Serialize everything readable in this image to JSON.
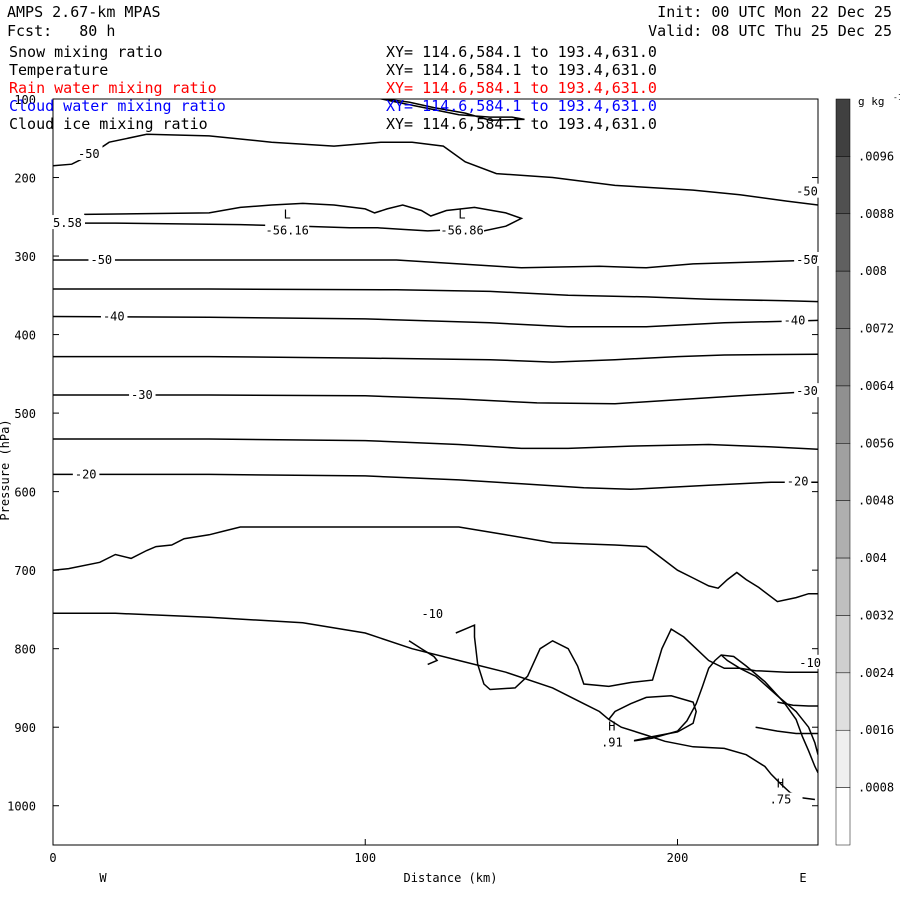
{
  "header": {
    "model": "AMPS 2.67-km MPAS",
    "init": "Init: 00 UTC Mon 22 Dec 25",
    "fcst": "Fcst:   80 h",
    "valid": "Valid: 08 UTC Thu 25 Dec 25"
  },
  "fields": [
    {
      "name": "Snow mixing ratio",
      "xy": "XY= 114.6,584.1 to 193.4,631.0",
      "color": "#000000"
    },
    {
      "name": "Temperature",
      "xy": "XY= 114.6,584.1 to 193.4,631.0",
      "color": "#000000"
    },
    {
      "name": "Rain water mixing ratio",
      "xy": "XY= 114.6,584.1 to 193.4,631.0",
      "color": "#ff0000"
    },
    {
      "name": "Cloud water mixing ratio",
      "xy": "XY= 114.6,584.1 to 193.4,631.0",
      "color": "#0000ff"
    },
    {
      "name": "Cloud ice mixing ratio",
      "xy": "XY= 114.6,584.1 to 193.4,631.0",
      "color": "#000000"
    }
  ],
  "chart_data": {
    "type": "line",
    "xlabel": "Distance (km)",
    "ylabel": "Pressure (hPa)",
    "xlim": [
      0,
      245
    ],
    "ylim": [
      1050,
      100
    ],
    "xticks": [
      0,
      100,
      200
    ],
    "yticks": [
      100,
      200,
      300,
      400,
      500,
      600,
      700,
      800,
      900,
      1000
    ],
    "side_labels": {
      "west": "W",
      "east": "E"
    },
    "colorbar": {
      "units": "g kg",
      "units_exp": "-1",
      "labels": [
        ".0096",
        ".0088",
        ".008",
        ".0072",
        ".0064",
        ".0056",
        ".0048",
        ".004",
        ".0032",
        ".0024",
        ".0016",
        ".0008"
      ]
    },
    "contour_labels": [
      {
        "text": "-50",
        "x": 8,
        "y": 170
      },
      {
        "text": "-50",
        "x": 238,
        "y": 218
      },
      {
        "text": "-50",
        "x": 12,
        "y": 305
      },
      {
        "text": "-50",
        "x": 238,
        "y": 305
      },
      {
        "text": "-40",
        "x": 16,
        "y": 377
      },
      {
        "text": "-40",
        "x": 234,
        "y": 382
      },
      {
        "text": "-30",
        "x": 25,
        "y": 477
      },
      {
        "text": "-30",
        "x": 238,
        "y": 472
      },
      {
        "text": "-20",
        "x": 7,
        "y": 578
      },
      {
        "text": "-20",
        "x": 235,
        "y": 587
      },
      {
        "text": "-10",
        "x": 118,
        "y": 756
      },
      {
        "text": "-10",
        "x": 239,
        "y": 818
      },
      {
        "text": "5.58",
        "x": 0,
        "y": 258
      }
    ],
    "extrema": [
      {
        "type": "L",
        "value": "-56.16",
        "x": 75,
        "y": 257
      },
      {
        "type": "L",
        "value": "-56.86",
        "x": 131,
        "y": 257
      },
      {
        "type": "H",
        "value": ".91",
        "x": 179,
        "y": 909
      },
      {
        "type": "H",
        "value": ".75",
        "x": 233,
        "y": 982
      }
    ],
    "isotherms": [
      {
        "name": "top",
        "points": [
          [
            104,
            99
          ],
          [
            110,
            104
          ],
          [
            120,
            112
          ],
          [
            130,
            120
          ],
          [
            140,
            123
          ],
          [
            147,
            123
          ],
          [
            151,
            126
          ],
          [
            140,
            127
          ],
          [
            132,
            118
          ],
          [
            122,
            111
          ],
          [
            114,
            104
          ],
          [
            106,
            100
          ]
        ]
      },
      {
        "name": "-50a",
        "points": [
          [
            0,
            185
          ],
          [
            6,
            183
          ],
          [
            12,
            171
          ],
          [
            18,
            155
          ],
          [
            30,
            145
          ],
          [
            50,
            147
          ],
          [
            70,
            155
          ],
          [
            90,
            160
          ],
          [
            105,
            155
          ],
          [
            115,
            155
          ],
          [
            125,
            160
          ],
          [
            132,
            180
          ],
          [
            142,
            195
          ],
          [
            160,
            200
          ],
          [
            180,
            210
          ],
          [
            205,
            216
          ],
          [
            220,
            222
          ],
          [
            235,
            230
          ],
          [
            245,
            235
          ]
        ]
      },
      {
        "name": "-55",
        "points": [
          [
            10,
            247
          ],
          [
            30,
            246
          ],
          [
            50,
            245
          ],
          [
            60,
            238
          ],
          [
            70,
            235
          ],
          [
            80,
            233
          ],
          [
            90,
            235
          ],
          [
            100,
            240
          ],
          [
            103,
            245
          ],
          [
            107,
            240
          ],
          [
            112,
            235
          ],
          [
            118,
            242
          ],
          [
            121,
            249
          ],
          [
            126,
            242
          ],
          [
            135,
            238
          ],
          [
            145,
            245
          ],
          [
            150,
            252
          ],
          [
            145,
            262
          ],
          [
            138,
            268
          ],
          [
            130,
            266
          ],
          [
            120,
            268
          ],
          [
            112,
            266
          ],
          [
            104,
            264
          ],
          [
            95,
            264
          ],
          [
            80,
            262
          ],
          [
            60,
            260
          ],
          [
            40,
            259
          ],
          [
            20,
            258
          ],
          [
            0,
            258
          ]
        ]
      },
      {
        "name": "-50b",
        "points": [
          [
            0,
            305
          ],
          [
            40,
            305
          ],
          [
            80,
            305
          ],
          [
            110,
            305
          ],
          [
            130,
            310
          ],
          [
            150,
            315
          ],
          [
            175,
            313
          ],
          [
            190,
            315
          ],
          [
            205,
            310
          ],
          [
            230,
            307
          ],
          [
            245,
            305
          ]
        ]
      },
      {
        "name": "-45",
        "points": [
          [
            0,
            342
          ],
          [
            50,
            342
          ],
          [
            110,
            343
          ],
          [
            140,
            345
          ],
          [
            165,
            350
          ],
          [
            190,
            352
          ],
          [
            210,
            355
          ],
          [
            235,
            357
          ],
          [
            245,
            358
          ]
        ]
      },
      {
        "name": "-40",
        "points": [
          [
            0,
            377
          ],
          [
            50,
            378
          ],
          [
            100,
            380
          ],
          [
            140,
            385
          ],
          [
            165,
            390
          ],
          [
            190,
            390
          ],
          [
            215,
            385
          ],
          [
            235,
            383
          ],
          [
            245,
            382
          ]
        ]
      },
      {
        "name": "-35",
        "points": [
          [
            0,
            428
          ],
          [
            50,
            428
          ],
          [
            100,
            430
          ],
          [
            140,
            432
          ],
          [
            160,
            435
          ],
          [
            180,
            432
          ],
          [
            200,
            428
          ],
          [
            215,
            426
          ],
          [
            245,
            425
          ]
        ]
      },
      {
        "name": "-30",
        "points": [
          [
            0,
            477
          ],
          [
            50,
            477
          ],
          [
            100,
            478
          ],
          [
            130,
            482
          ],
          [
            155,
            487
          ],
          [
            180,
            488
          ],
          [
            200,
            483
          ],
          [
            220,
            478
          ],
          [
            245,
            472
          ]
        ]
      },
      {
        "name": "-25",
        "points": [
          [
            0,
            533
          ],
          [
            50,
            533
          ],
          [
            100,
            535
          ],
          [
            130,
            540
          ],
          [
            150,
            545
          ],
          [
            165,
            545
          ],
          [
            185,
            542
          ],
          [
            210,
            540
          ],
          [
            230,
            543
          ],
          [
            245,
            546
          ]
        ]
      },
      {
        "name": "-20",
        "points": [
          [
            0,
            578
          ],
          [
            50,
            578
          ],
          [
            100,
            580
          ],
          [
            130,
            585
          ],
          [
            150,
            590
          ],
          [
            170,
            595
          ],
          [
            185,
            597
          ],
          [
            210,
            592
          ],
          [
            230,
            588
          ],
          [
            245,
            588
          ]
        ]
      },
      {
        "name": "-15",
        "points": [
          [
            0,
            700
          ],
          [
            5,
            698
          ],
          [
            15,
            690
          ],
          [
            20,
            680
          ],
          [
            25,
            685
          ],
          [
            30,
            675
          ],
          [
            33,
            670
          ],
          [
            38,
            668
          ],
          [
            42,
            660
          ],
          [
            50,
            655
          ],
          [
            55,
            650
          ],
          [
            60,
            645
          ],
          [
            80,
            645
          ],
          [
            110,
            645
          ],
          [
            130,
            645
          ],
          [
            145,
            655
          ],
          [
            160,
            665
          ],
          [
            180,
            668
          ],
          [
            190,
            670
          ],
          [
            195,
            685
          ],
          [
            200,
            700
          ],
          [
            205,
            710
          ],
          [
            210,
            720
          ],
          [
            213,
            723
          ],
          [
            216,
            712
          ],
          [
            219,
            703
          ],
          [
            222,
            712
          ],
          [
            226,
            722
          ],
          [
            232,
            740
          ],
          [
            238,
            735
          ],
          [
            242,
            730
          ],
          [
            245,
            730
          ]
        ]
      },
      {
        "name": "-10-left",
        "points": [
          [
            0,
            755
          ],
          [
            20,
            755
          ],
          [
            50,
            760
          ],
          [
            80,
            767
          ],
          [
            100,
            780
          ],
          [
            115,
            800
          ],
          [
            130,
            815
          ],
          [
            145,
            830
          ],
          [
            160,
            850
          ],
          [
            170,
            870
          ],
          [
            175,
            880
          ],
          [
            178,
            890
          ],
          [
            182,
            900
          ],
          [
            190,
            910
          ],
          [
            196,
            918
          ],
          [
            205,
            925
          ],
          [
            215,
            927
          ],
          [
            222,
            935
          ],
          [
            228,
            950
          ],
          [
            230,
            960
          ],
          [
            233,
            972
          ],
          [
            236,
            983
          ],
          [
            240,
            990
          ],
          [
            244,
            992
          ]
        ]
      },
      {
        "name": "-10-tongue",
        "points": [
          [
            114,
            790
          ],
          [
            118,
            800
          ],
          [
            122,
            810
          ],
          [
            123,
            815
          ],
          [
            120,
            820
          ]
        ]
      },
      {
        "name": "-10-loop",
        "points": [
          [
            129,
            780
          ],
          [
            132,
            775
          ],
          [
            135,
            770
          ],
          [
            135,
            785
          ],
          [
            136,
            820
          ],
          [
            138,
            845
          ],
          [
            140,
            852
          ],
          [
            148,
            850
          ],
          [
            152,
            835
          ],
          [
            156,
            800
          ],
          [
            160,
            790
          ],
          [
            165,
            800
          ],
          [
            168,
            822
          ],
          [
            170,
            845
          ],
          [
            178,
            848
          ],
          [
            185,
            843
          ],
          [
            192,
            840
          ],
          [
            195,
            800
          ],
          [
            198,
            775
          ],
          [
            202,
            785
          ],
          [
            206,
            800
          ],
          [
            210,
            815
          ],
          [
            215,
            825
          ],
          [
            220,
            825
          ],
          [
            225,
            828
          ],
          [
            235,
            830
          ],
          [
            245,
            830
          ]
        ]
      },
      {
        "name": "bump",
        "points": [
          [
            178,
            890
          ],
          [
            180,
            880
          ],
          [
            185,
            870
          ],
          [
            190,
            862
          ],
          [
            198,
            860
          ],
          [
            205,
            868
          ],
          [
            206,
            880
          ],
          [
            205,
            895
          ],
          [
            200,
            906
          ],
          [
            192,
            912
          ],
          [
            185,
            918
          ],
          [
            178,
            923
          ]
        ]
      },
      {
        "name": "mountain-left",
        "points": [
          [
            178,
            923
          ],
          [
            185,
            918
          ],
          [
            192,
            914
          ],
          [
            200,
            905
          ],
          [
            203,
            892
          ],
          [
            206,
            870
          ],
          [
            208,
            848
          ],
          [
            210,
            825
          ],
          [
            212,
            815
          ],
          [
            214,
            808
          ],
          [
            218,
            810
          ],
          [
            222,
            822
          ],
          [
            228,
            842
          ],
          [
            234,
            868
          ],
          [
            238,
            890
          ],
          [
            240,
            912
          ],
          [
            242,
            930
          ],
          [
            244,
            950
          ],
          [
            245,
            958
          ]
        ]
      },
      {
        "name": "mountain-right",
        "points": [
          [
            214,
            808
          ],
          [
            216,
            815
          ],
          [
            220,
            825
          ],
          [
            225,
            835
          ],
          [
            232,
            860
          ],
          [
            238,
            880
          ],
          [
            242,
            900
          ],
          [
            244,
            920
          ],
          [
            245,
            935
          ]
        ]
      },
      {
        "name": "east-ridge",
        "points": [
          [
            232,
            868
          ],
          [
            237,
            872
          ],
          [
            242,
            873
          ],
          [
            245,
            873
          ]
        ]
      },
      {
        "name": "east-lower",
        "points": [
          [
            225,
            900
          ],
          [
            232,
            905
          ],
          [
            238,
            908
          ],
          [
            245,
            908
          ]
        ]
      }
    ]
  }
}
